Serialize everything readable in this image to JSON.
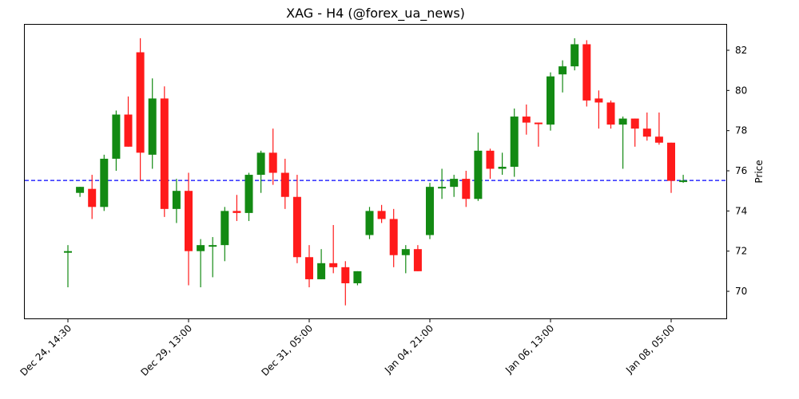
{
  "chart_data": {
    "type": "candlestick",
    "title": "XAG - H4 (@forex_ua_news)",
    "xlabel": "",
    "ylabel": "Price",
    "ylim": [
      68.6,
      83.3
    ],
    "y_ticks": [
      70,
      72,
      74,
      76,
      78,
      80,
      82
    ],
    "x_tick_labels": [
      {
        "label": "Dec 24, 14:30",
        "index": 0
      },
      {
        "label": "Dec 29, 13:00",
        "index": 10
      },
      {
        "label": "Dec 31, 05:00",
        "index": 20
      },
      {
        "label": "Jan 04, 21:00",
        "index": 30
      },
      {
        "label": "Jan 06, 13:00",
        "index": 40
      },
      {
        "label": "Jan 08, 05:00",
        "index": 50
      }
    ],
    "grid": false,
    "y_axis_position": "right",
    "reference_line": {
      "value": 75.52,
      "color": "#0000ff",
      "style": "dashed"
    },
    "colors": {
      "up": "#138a13",
      "down": "#ff1a1a"
    },
    "candles": [
      {
        "o": 72.0,
        "h": 72.3,
        "l": 70.2,
        "c": 72.0
      },
      {
        "o": 74.9,
        "h": 75.2,
        "l": 74.7,
        "c": 75.2
      },
      {
        "o": 75.1,
        "h": 75.8,
        "l": 73.6,
        "c": 74.2
      },
      {
        "o": 74.2,
        "h": 76.8,
        "l": 74.0,
        "c": 76.6
      },
      {
        "o": 76.6,
        "h": 79.0,
        "l": 76.0,
        "c": 78.8
      },
      {
        "o": 78.8,
        "h": 79.7,
        "l": 77.2,
        "c": 77.2
      },
      {
        "o": 81.9,
        "h": 82.6,
        "l": 75.5,
        "c": 76.9
      },
      {
        "o": 76.8,
        "h": 80.6,
        "l": 76.1,
        "c": 79.6
      },
      {
        "o": 79.6,
        "h": 80.2,
        "l": 73.7,
        "c": 74.1
      },
      {
        "o": 74.1,
        "h": 75.6,
        "l": 73.4,
        "c": 75.0
      },
      {
        "o": 75.0,
        "h": 75.9,
        "l": 70.3,
        "c": 72.0
      },
      {
        "o": 72.0,
        "h": 72.6,
        "l": 70.2,
        "c": 72.3
      },
      {
        "o": 72.3,
        "h": 72.7,
        "l": 70.7,
        "c": 72.3
      },
      {
        "o": 72.3,
        "h": 74.2,
        "l": 71.5,
        "c": 74.0
      },
      {
        "o": 74.0,
        "h": 74.8,
        "l": 73.5,
        "c": 73.9
      },
      {
        "o": 73.9,
        "h": 75.9,
        "l": 73.5,
        "c": 75.8
      },
      {
        "o": 75.8,
        "h": 77.0,
        "l": 74.9,
        "c": 76.9
      },
      {
        "o": 76.9,
        "h": 78.1,
        "l": 75.3,
        "c": 75.9
      },
      {
        "o": 75.9,
        "h": 76.6,
        "l": 74.1,
        "c": 74.7
      },
      {
        "o": 74.7,
        "h": 75.8,
        "l": 71.4,
        "c": 71.7
      },
      {
        "o": 71.7,
        "h": 72.3,
        "l": 70.2,
        "c": 70.6
      },
      {
        "o": 70.6,
        "h": 72.1,
        "l": 70.6,
        "c": 71.4
      },
      {
        "o": 71.4,
        "h": 73.3,
        "l": 70.9,
        "c": 71.2
      },
      {
        "o": 71.2,
        "h": 71.5,
        "l": 69.3,
        "c": 70.4
      },
      {
        "o": 70.4,
        "h": 71.0,
        "l": 70.3,
        "c": 71.0
      },
      {
        "o": 72.8,
        "h": 74.2,
        "l": 72.6,
        "c": 74.0
      },
      {
        "o": 74.0,
        "h": 74.3,
        "l": 73.4,
        "c": 73.6
      },
      {
        "o": 73.6,
        "h": 74.1,
        "l": 71.2,
        "c": 71.8
      },
      {
        "o": 71.8,
        "h": 72.3,
        "l": 70.9,
        "c": 72.1
      },
      {
        "o": 72.1,
        "h": 72.3,
        "l": 71.0,
        "c": 71.0
      },
      {
        "o": 72.8,
        "h": 75.4,
        "l": 72.6,
        "c": 75.2
      },
      {
        "o": 75.15,
        "h": 76.1,
        "l": 74.6,
        "c": 75.2
      },
      {
        "o": 75.2,
        "h": 75.8,
        "l": 74.7,
        "c": 75.6
      },
      {
        "o": 75.6,
        "h": 76.0,
        "l": 74.2,
        "c": 74.6
      },
      {
        "o": 74.6,
        "h": 77.9,
        "l": 74.5,
        "c": 77.0
      },
      {
        "o": 77.0,
        "h": 77.1,
        "l": 75.6,
        "c": 76.1
      },
      {
        "o": 76.1,
        "h": 76.9,
        "l": 75.8,
        "c": 76.2
      },
      {
        "o": 76.2,
        "h": 79.1,
        "l": 75.7,
        "c": 78.7
      },
      {
        "o": 78.7,
        "h": 79.3,
        "l": 77.8,
        "c": 78.4
      },
      {
        "o": 78.4,
        "h": 78.4,
        "l": 77.2,
        "c": 78.35
      },
      {
        "o": 78.3,
        "h": 80.9,
        "l": 78.0,
        "c": 80.7
      },
      {
        "o": 80.8,
        "h": 81.5,
        "l": 79.9,
        "c": 81.2
      },
      {
        "o": 81.2,
        "h": 82.6,
        "l": 81.0,
        "c": 82.3
      },
      {
        "o": 82.3,
        "h": 82.5,
        "l": 79.2,
        "c": 79.5
      },
      {
        "o": 79.6,
        "h": 80.0,
        "l": 78.1,
        "c": 79.4
      },
      {
        "o": 79.4,
        "h": 79.5,
        "l": 78.1,
        "c": 78.3
      },
      {
        "o": 78.3,
        "h": 78.7,
        "l": 76.1,
        "c": 78.6
      },
      {
        "o": 78.6,
        "h": 78.6,
        "l": 77.2,
        "c": 78.1
      },
      {
        "o": 78.1,
        "h": 78.9,
        "l": 77.5,
        "c": 77.7
      },
      {
        "o": 77.7,
        "h": 78.9,
        "l": 77.3,
        "c": 77.4
      },
      {
        "o": 77.4,
        "h": 77.4,
        "l": 74.9,
        "c": 75.5
      },
      {
        "o": 75.5,
        "h": 75.8,
        "l": 75.4,
        "c": 75.52
      }
    ]
  }
}
